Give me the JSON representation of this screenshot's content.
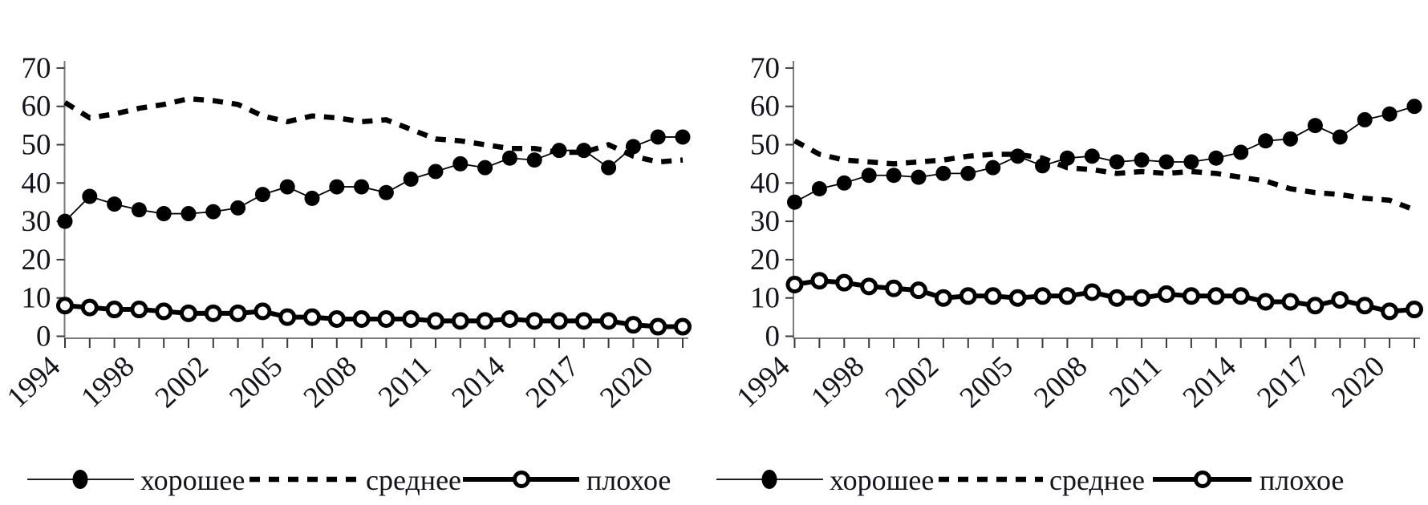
{
  "figure": {
    "background": "#ffffff",
    "ink": "#000000",
    "axis_color": "#7a7a7a",
    "description": "Two line charts, ratings dynamics 1994-2021"
  },
  "chart_data": [
    {
      "type": "line",
      "panel": "left",
      "title": "",
      "xlabel": "",
      "ylabel": "",
      "ylim": [
        0,
        70
      ],
      "y_ticks": [
        0,
        10,
        20,
        30,
        40,
        50,
        60,
        70
      ],
      "grid": false,
      "n_points": 26,
      "x_tick_labels": [
        "1994",
        "1998",
        "2002",
        "2005",
        "2008",
        "2011",
        "2014",
        "2017",
        "2020"
      ],
      "x_tick_point_indices": [
        0,
        3,
        6,
        9,
        12,
        15,
        18,
        21,
        24
      ],
      "legend_position": "bottom",
      "series": [
        {
          "name": "хорошее",
          "line": "thin-solid",
          "marker": "filled-circle",
          "values": [
            30,
            36.5,
            34.5,
            33,
            32,
            32,
            32.5,
            33.5,
            37,
            39,
            36,
            39,
            39,
            37.5,
            41,
            43,
            45,
            44,
            46.5,
            46,
            48.5,
            48.5,
            44,
            49.5,
            52,
            52
          ]
        },
        {
          "name": "среднее",
          "line": "thick-dashed",
          "marker": "none",
          "values": [
            61,
            57,
            58,
            59.5,
            60.5,
            62,
            61.5,
            60.5,
            57.5,
            56,
            57.5,
            57,
            56,
            56.5,
            54,
            51.5,
            51,
            50,
            49,
            49,
            48,
            48,
            50,
            47,
            45.5,
            46
          ]
        },
        {
          "name": "плохое",
          "line": "thick-solid",
          "marker": "open-circle",
          "values": [
            8,
            7.5,
            7,
            7,
            6.5,
            6,
            6,
            6,
            6.5,
            5,
            5,
            4.5,
            4.5,
            4.5,
            4.5,
            4,
            4,
            4,
            4.5,
            4,
            4,
            4,
            4,
            3,
            2.5,
            2.5
          ]
        }
      ]
    },
    {
      "type": "line",
      "panel": "right",
      "title": "",
      "xlabel": "",
      "ylabel": "",
      "ylim": [
        0,
        70
      ],
      "y_ticks": [
        0,
        10,
        20,
        30,
        40,
        50,
        60,
        70
      ],
      "grid": false,
      "n_points": 26,
      "x_tick_labels": [
        "1994",
        "1998",
        "2002",
        "2005",
        "2008",
        "2011",
        "2014",
        "2017",
        "2020"
      ],
      "x_tick_point_indices": [
        0,
        3,
        6,
        9,
        12,
        15,
        18,
        21,
        24
      ],
      "legend_position": "bottom",
      "series": [
        {
          "name": "хорошее",
          "line": "thin-solid",
          "marker": "filled-circle",
          "values": [
            35,
            38.5,
            40,
            42,
            42,
            41.5,
            42.5,
            42.5,
            44,
            47,
            44.5,
            46.5,
            47,
            45.5,
            46,
            45.5,
            45.5,
            46.5,
            48,
            51,
            51.5,
            55,
            52,
            56.5,
            58,
            60
          ]
        },
        {
          "name": "среднее",
          "line": "thick-dashed",
          "marker": "none",
          "values": [
            51,
            47.5,
            46,
            45.5,
            45,
            45.5,
            46,
            47,
            47.5,
            47.5,
            46.5,
            44,
            43.5,
            42.5,
            43,
            42.5,
            43,
            42.5,
            41.5,
            40.5,
            38.5,
            37.5,
            37,
            36,
            35.5,
            33
          ]
        },
        {
          "name": "плохое",
          "line": "thick-solid",
          "marker": "open-circle",
          "values": [
            13.5,
            14.5,
            14,
            13,
            12.5,
            12,
            10,
            10.5,
            10.5,
            10,
            10.5,
            10.5,
            11.5,
            10,
            10,
            11,
            10.5,
            10.5,
            10.5,
            9,
            9,
            8,
            9.5,
            8,
            6.5,
            7
          ]
        }
      ]
    }
  ]
}
